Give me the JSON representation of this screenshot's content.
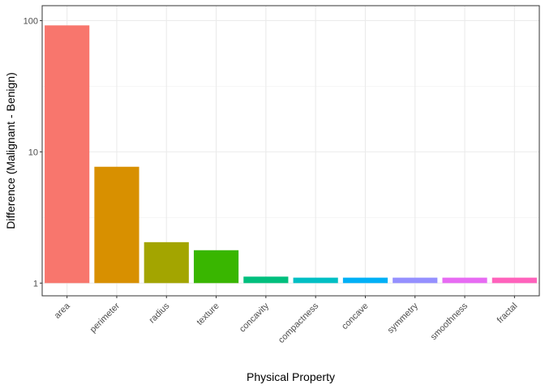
{
  "chart_data": {
    "type": "bar",
    "title": "",
    "xlabel": "Physical Property",
    "ylabel": "Difference (Malignant - Benign)",
    "y_scale": "log10",
    "ylim": [
      0.8,
      130
    ],
    "y_ticks": [
      1,
      10,
      100
    ],
    "y_tick_labels": [
      "1",
      "10",
      "100"
    ],
    "grid": true,
    "legend": "none",
    "baseline": 1,
    "categories": [
      "area",
      "perimeter",
      "radius",
      "texture",
      "concavity",
      "compactness",
      "concave",
      "symmetry",
      "smoothness",
      "fractal"
    ],
    "values": [
      92,
      7.7,
      2.05,
      1.78,
      1.12,
      1.1,
      1.1,
      1.1,
      1.1,
      1.1
    ],
    "colors": [
      "#F8766D",
      "#D89000",
      "#A3A500",
      "#39B600",
      "#00BF7D",
      "#00BFC4",
      "#00B0F6",
      "#9590FF",
      "#E76BF3",
      "#FF62BC"
    ]
  }
}
